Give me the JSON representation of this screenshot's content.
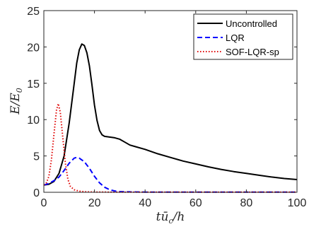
{
  "chart_data": {
    "type": "line",
    "xlabel": "tū_c/h",
    "ylabel": "E/E₀",
    "xlim": [
      0,
      100
    ],
    "ylim": [
      0,
      25
    ],
    "x_ticks": [
      0,
      20,
      40,
      60,
      80,
      100
    ],
    "y_ticks": [
      0,
      5,
      10,
      15,
      20,
      25
    ],
    "x_tick_labels": [
      "0",
      "20",
      "40",
      "60",
      "80",
      "100"
    ],
    "y_tick_labels": [
      "0",
      "5",
      "10",
      "15",
      "20",
      "25"
    ],
    "grid": false,
    "legend_position": "top-right",
    "series": [
      {
        "name": "Uncontrolled",
        "color": "#000000",
        "dash": "solid",
        "x": [
          0,
          2,
          4,
          6,
          8,
          10,
          12,
          13,
          14,
          15,
          16,
          17,
          18,
          19,
          20,
          21,
          22,
          23,
          24,
          26,
          28,
          30,
          32,
          34,
          36,
          40,
          45,
          50,
          55,
          60,
          65,
          70,
          75,
          80,
          85,
          90,
          95,
          100
        ],
        "y": [
          1.0,
          1.1,
          1.5,
          2.6,
          5.0,
          9.5,
          15.0,
          17.8,
          19.6,
          20.4,
          20.2,
          19.2,
          17.4,
          14.8,
          12.0,
          9.9,
          8.5,
          7.9,
          7.7,
          7.6,
          7.5,
          7.3,
          6.9,
          6.5,
          6.3,
          5.9,
          5.3,
          4.8,
          4.3,
          3.9,
          3.5,
          3.15,
          2.85,
          2.6,
          2.35,
          2.1,
          1.9,
          1.75
        ]
      },
      {
        "name": "LQR",
        "color": "#0000ff",
        "dash": "dashed",
        "x": [
          0,
          2,
          4,
          6,
          8,
          10,
          12,
          13,
          14,
          16,
          18,
          20,
          22,
          24,
          26,
          28,
          30,
          35,
          40,
          50,
          60,
          70,
          80,
          90,
          100
        ],
        "y": [
          1.0,
          1.2,
          1.6,
          2.1,
          3.0,
          4.0,
          4.7,
          4.8,
          4.7,
          4.2,
          3.3,
          2.2,
          1.3,
          0.7,
          0.35,
          0.18,
          0.1,
          0.05,
          0.03,
          0.02,
          0.02,
          0.02,
          0.02,
          0.02,
          0.02
        ]
      },
      {
        "name": "SOF-LQR-sp",
        "color": "#e00000",
        "dash": "dotted",
        "x": [
          0,
          1,
          2,
          3,
          4,
          5,
          5.7,
          6.5,
          7.5,
          8.5,
          9.5,
          10.5,
          12,
          14,
          16,
          20,
          30,
          40,
          60,
          80,
          100
        ],
        "y": [
          1.0,
          1.3,
          2.2,
          4.5,
          8.0,
          11.3,
          12.2,
          11.0,
          7.5,
          4.0,
          1.8,
          0.8,
          0.35,
          0.15,
          0.08,
          0.04,
          0.02,
          0.02,
          0.02,
          0.02,
          0.02
        ]
      }
    ]
  }
}
